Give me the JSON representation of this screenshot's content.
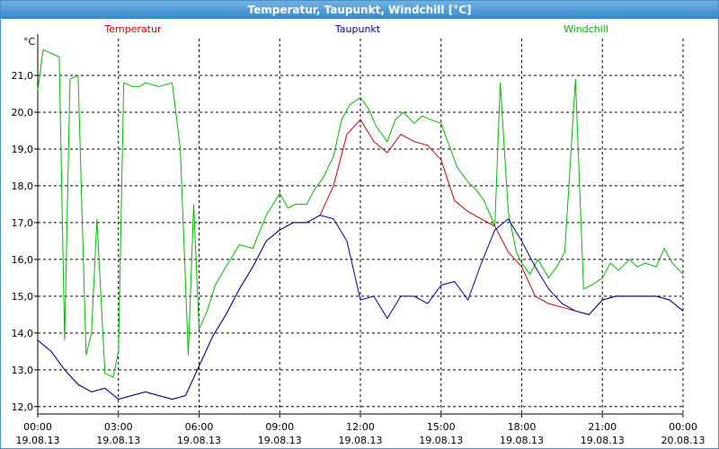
{
  "window": {
    "title": "Temperatur, Taupunkt, Windchill [°C]"
  },
  "chart_data": {
    "type": "line",
    "ylabel": "°C",
    "ylim": [
      11.8,
      22.0
    ],
    "yticks": [
      12.0,
      13.0,
      14.0,
      15.0,
      16.0,
      17.0,
      18.0,
      19.0,
      20.0,
      21.0
    ],
    "ytick_labels": [
      "12,0",
      "13,0",
      "14,0",
      "15,0",
      "16,0",
      "17,0",
      "18,0",
      "19,0",
      "20,0",
      "21,0"
    ],
    "xlim": [
      0,
      24
    ],
    "xticks": [
      0,
      3,
      6,
      9,
      12,
      15,
      18,
      21,
      24
    ],
    "xtick_labels": [
      [
        "00:00",
        "19.08.13"
      ],
      [
        "03:00",
        "19.08.13"
      ],
      [
        "06:00",
        "19.08.13"
      ],
      [
        "09:00",
        "19.08.13"
      ],
      [
        "12:00",
        "19.08.13"
      ],
      [
        "15:00",
        "19.08.13"
      ],
      [
        "18:00",
        "19.08.13"
      ],
      [
        "21:00",
        "19.08.13"
      ],
      [
        "00:00",
        "20.08.13"
      ]
    ],
    "grid": true,
    "legend_position": "top",
    "series": [
      {
        "name": "Temperatur",
        "color": "#cc0000",
        "x": [
          0,
          0.5,
          1,
          1.5,
          2,
          2.5,
          3,
          3.5,
          4,
          4.5,
          5,
          5.5,
          6,
          6.5,
          7,
          7.5,
          8,
          8.5,
          9,
          9.5,
          10,
          10.5,
          11,
          11.5,
          12,
          12.5,
          13,
          13.5,
          14,
          14.5,
          15,
          15.5,
          16,
          16.5,
          17,
          17.5,
          18,
          18.5,
          19,
          19.5,
          20,
          20.5,
          21,
          21.5,
          22,
          22.5,
          23,
          23.5,
          24
        ],
        "y": [
          13.8,
          13.5,
          13.0,
          12.6,
          12.4,
          12.5,
          12.2,
          12.3,
          12.4,
          12.3,
          12.2,
          12.3,
          13.1,
          13.9,
          14.5,
          15.2,
          15.8,
          16.5,
          16.8,
          17.0,
          17.0,
          17.2,
          18.0,
          19.4,
          19.8,
          19.2,
          18.9,
          19.4,
          19.2,
          19.1,
          18.7,
          17.6,
          17.3,
          17.1,
          16.9,
          16.2,
          15.8,
          15.0,
          14.8,
          14.7,
          14.6,
          14.5,
          14.9,
          15.0,
          15.0,
          15.0,
          15.0,
          14.9,
          14.6
        ]
      },
      {
        "name": "Taupunkt",
        "color": "#000099",
        "x": [
          0,
          0.5,
          1,
          1.5,
          2,
          2.5,
          3,
          3.5,
          4,
          4.5,
          5,
          5.5,
          6,
          6.5,
          7,
          7.5,
          8,
          8.5,
          9,
          9.5,
          10,
          10.5,
          11,
          11.5,
          12,
          12.5,
          13,
          13.5,
          14,
          14.5,
          15,
          15.5,
          16,
          16.5,
          17,
          17.5,
          18,
          18.5,
          19,
          19.5,
          20,
          20.5,
          21,
          21.5,
          22,
          22.5,
          23,
          23.5,
          24
        ],
        "y": [
          13.8,
          13.5,
          13.0,
          12.6,
          12.4,
          12.5,
          12.2,
          12.3,
          12.4,
          12.3,
          12.2,
          12.3,
          13.1,
          13.9,
          14.5,
          15.2,
          15.8,
          16.5,
          16.8,
          17.0,
          17.0,
          17.2,
          17.1,
          16.5,
          14.9,
          15.0,
          14.4,
          15.0,
          15.0,
          14.8,
          15.3,
          15.4,
          14.9,
          15.9,
          16.8,
          17.1,
          16.5,
          15.8,
          15.2,
          14.8,
          14.6,
          14.5,
          14.9,
          15.0,
          15.0,
          15.0,
          15.0,
          14.9,
          14.6
        ]
      },
      {
        "name": "Windchill",
        "color": "#00bb00",
        "x": [
          0,
          0.2,
          0.5,
          0.8,
          1.0,
          1.2,
          1.5,
          1.8,
          2.0,
          2.2,
          2.5,
          2.8,
          3.0,
          3.2,
          3.5,
          3.8,
          4.0,
          4.5,
          5.0,
          5.3,
          5.6,
          5.8,
          6.0,
          6.3,
          6.6,
          7.0,
          7.5,
          8.0,
          8.5,
          9.0,
          9.3,
          9.6,
          10.0,
          10.3,
          10.6,
          11.0,
          11.3,
          11.6,
          12.0,
          12.3,
          12.6,
          13.0,
          13.3,
          13.6,
          14.0,
          14.3,
          14.6,
          15.0,
          15.3,
          15.6,
          16.0,
          16.3,
          16.6,
          17.0,
          17.2,
          17.5,
          17.8,
          18.0,
          18.3,
          18.6,
          19.0,
          19.3,
          19.6,
          20.0,
          20.3,
          20.6,
          21.0,
          21.3,
          21.6,
          22.0,
          22.3,
          22.6,
          23.0,
          23.3,
          23.6,
          24.0
        ],
        "y": [
          20.6,
          21.7,
          21.6,
          21.5,
          13.8,
          20.9,
          21.0,
          13.4,
          14.0,
          17.1,
          12.9,
          12.8,
          13.5,
          20.8,
          20.7,
          20.7,
          20.8,
          20.7,
          20.8,
          19.0,
          13.4,
          17.5,
          14.1,
          14.6,
          15.3,
          15.8,
          16.4,
          16.3,
          17.2,
          17.8,
          17.4,
          17.5,
          17.5,
          17.9,
          18.2,
          18.8,
          19.8,
          20.2,
          20.4,
          20.1,
          19.6,
          19.2,
          19.8,
          20.0,
          19.7,
          19.9,
          19.8,
          19.7,
          19.1,
          18.5,
          18.1,
          17.9,
          17.6,
          16.9,
          20.8,
          17.3,
          16.2,
          15.9,
          15.6,
          16.0,
          15.5,
          15.8,
          16.2,
          20.9,
          15.2,
          15.3,
          15.5,
          15.9,
          15.7,
          16.0,
          15.8,
          15.9,
          15.8,
          16.3,
          15.9,
          15.6
        ]
      }
    ]
  }
}
